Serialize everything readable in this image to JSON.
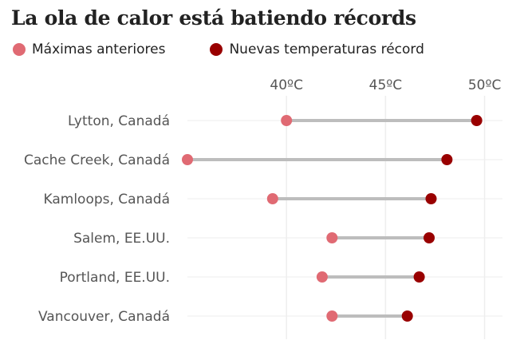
{
  "title": "La ola de calor está batiendo récords",
  "legend": {
    "previous_label": "Máximas anteriores",
    "new_label": "Nuevas temperaturas récord"
  },
  "colors": {
    "previous": "#e06a73",
    "new": "#990000",
    "connector": "#bdbdbd",
    "grid": "#eeeeee"
  },
  "chart_data": {
    "type": "dumbbell",
    "title": "La ola de calor está batiendo récords",
    "xlim": [
      35,
      50.5
    ],
    "x_ticks": [
      40,
      45,
      50
    ],
    "x_tick_labels": [
      "40ºC",
      "45ºC",
      "50ºC"
    ],
    "categories": [
      "Lytton, Canadá",
      "Cache Creek, Canadá",
      "Kamloops, Canadá",
      "Salem, EE.UU.",
      "Portland, EE.UU.",
      "Vancouver, Canadá"
    ],
    "series": [
      {
        "name": "Máximas anteriores",
        "values": [
          40.0,
          35.0,
          39.3,
          42.3,
          41.8,
          42.3
        ]
      },
      {
        "name": "Nuevas temperaturas récord",
        "values": [
          49.6,
          48.1,
          47.3,
          47.2,
          46.7,
          46.1
        ]
      }
    ],
    "grid": true,
    "legend_position": "top-left"
  }
}
